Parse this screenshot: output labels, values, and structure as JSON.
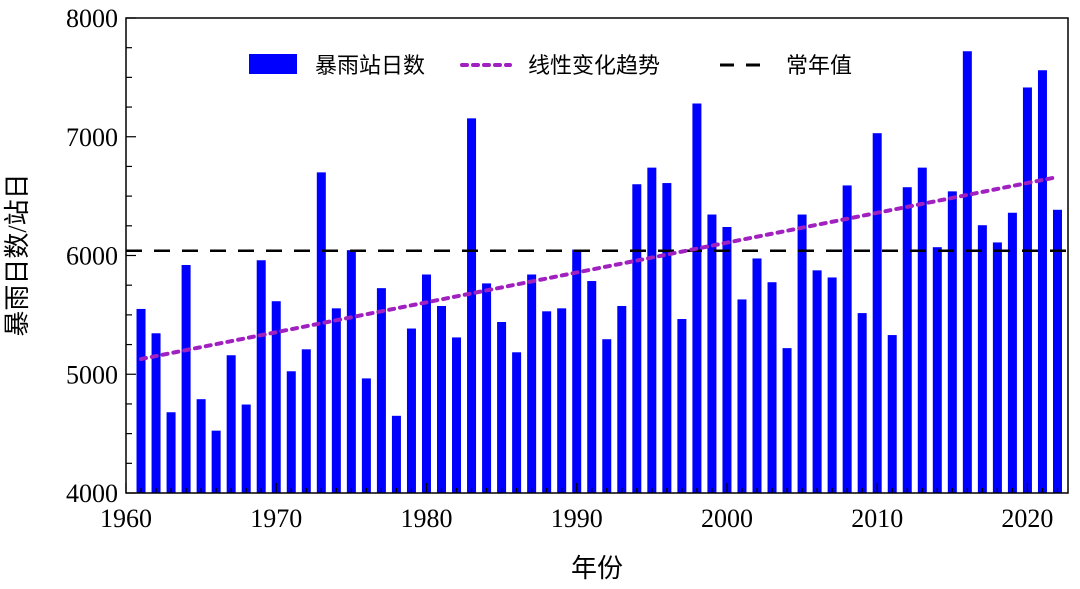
{
  "chart_data": {
    "type": "bar",
    "title": "",
    "xlabel": "年份",
    "ylabel": "暴雨日数/站日",
    "xlim": [
      1960,
      2022.7
    ],
    "ylim": [
      4000,
      8000
    ],
    "xticks": [
      "1960",
      "1970",
      "1980",
      "1990",
      "2000",
      "2010",
      "2020"
    ],
    "yticks": [
      "4000",
      "5000",
      "6000",
      "7000",
      "8000"
    ],
    "grid": false,
    "legend_position": "top",
    "x": [
      1961,
      1962,
      1963,
      1964,
      1965,
      1966,
      1967,
      1968,
      1969,
      1970,
      1971,
      1972,
      1973,
      1974,
      1975,
      1976,
      1977,
      1978,
      1979,
      1980,
      1981,
      1982,
      1983,
      1984,
      1985,
      1986,
      1987,
      1988,
      1989,
      1990,
      1991,
      1992,
      1993,
      1994,
      1995,
      1996,
      1997,
      1998,
      1999,
      2000,
      2001,
      2002,
      2003,
      2004,
      2005,
      2006,
      2007,
      2008,
      2009,
      2010,
      2011,
      2012,
      2013,
      2014,
      2015,
      2016,
      2017,
      2018,
      2019,
      2020,
      2021,
      2022
    ],
    "series": [
      {
        "name": "暴雨站日数",
        "kind": "bar",
        "color": "#0000ff",
        "values": [
          5550,
          5345,
          4680,
          5920,
          4790,
          4525,
          5160,
          4745,
          5960,
          5615,
          5025,
          5210,
          6700,
          5555,
          6045,
          4965,
          5725,
          4650,
          5385,
          5840,
          5575,
          5310,
          7155,
          5765,
          5440,
          5185,
          5840,
          5530,
          5555,
          6050,
          5785,
          5295,
          5575,
          6600,
          6740,
          6610,
          5465,
          7280,
          6345,
          6240,
          5630,
          5975,
          5775,
          5220,
          6345,
          5875,
          5815,
          6590,
          5515,
          7030,
          5330,
          6575,
          6740,
          6070,
          6540,
          7720,
          6255,
          6110,
          6360,
          7415,
          7560,
          6385
        ]
      },
      {
        "name": "线性变化趋势",
        "kind": "dotted-line",
        "color": "#a020c0",
        "trend_endpoints": [
          [
            1961,
            5128
          ],
          [
            2022,
            6661
          ]
        ]
      },
      {
        "name": "常年值",
        "kind": "dashed-line",
        "color": "#000000",
        "value": 6040
      }
    ]
  }
}
